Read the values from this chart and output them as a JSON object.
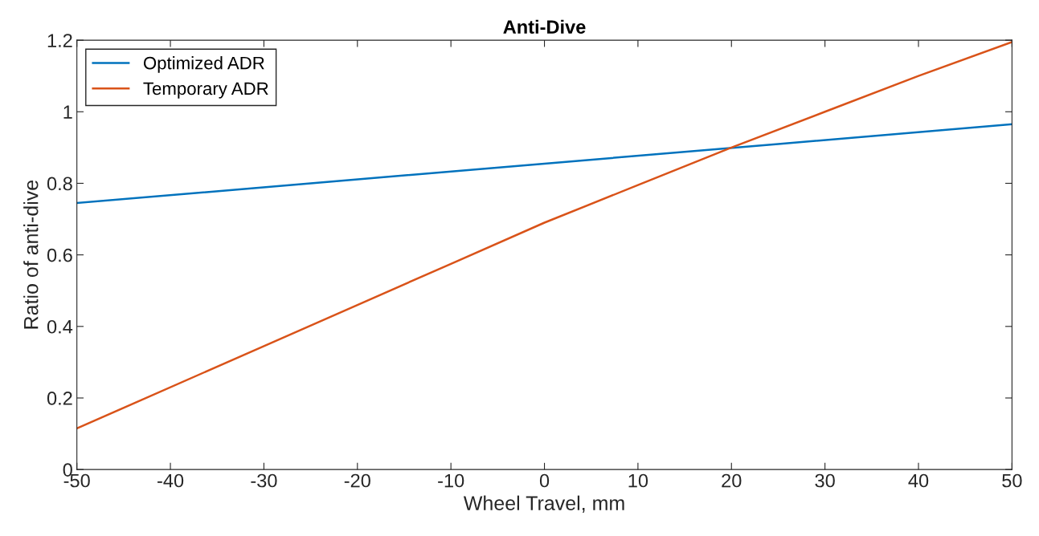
{
  "chart_data": {
    "type": "line",
    "title": "Anti-Dive",
    "xlabel": "Wheel Travel, mm",
    "ylabel": "Ratio of anti-dive",
    "series": [
      {
        "name": "Optimized ADR",
        "color": "#0072bd",
        "x": [
          -50,
          -25,
          0,
          25,
          50
        ],
        "values": [
          0.745,
          0.8,
          0.855,
          0.91,
          0.965
        ]
      },
      {
        "name": "Temporary ADR",
        "color": "#d95319",
        "x": [
          -50,
          -30,
          -20,
          -10,
          0,
          10,
          20,
          30,
          40,
          50
        ],
        "values": [
          0.115,
          0.345,
          0.46,
          0.575,
          0.69,
          0.795,
          0.9,
          1.0,
          1.1,
          1.195
        ]
      }
    ],
    "xlim": [
      -50,
      50
    ],
    "xticks": [
      -50,
      -40,
      -30,
      -20,
      -10,
      0,
      10,
      20,
      30,
      40,
      50
    ],
    "ylim": [
      0,
      1.2
    ],
    "yticks": [
      0,
      0.2,
      0.4,
      0.6,
      0.8,
      1,
      1.2
    ],
    "grid": false,
    "legend": "top left",
    "marker": "none",
    "line_style": "solid"
  }
}
